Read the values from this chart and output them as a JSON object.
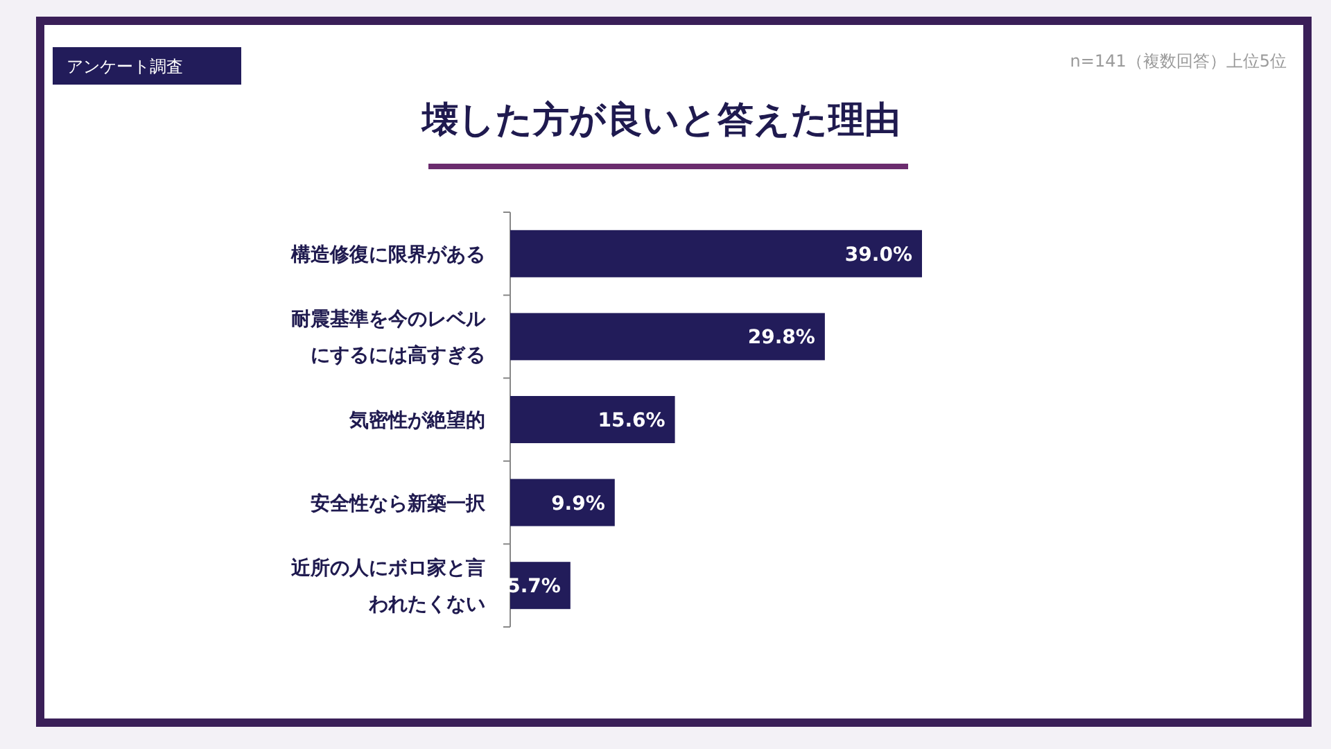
{
  "chart_data": {
    "type": "bar",
    "orientation": "horizontal",
    "title": "壊した方が良いと答えた理由",
    "categories": [
      "構造修復に限界がある",
      "耐震基準を今のレベルにするには高すぎる",
      "気密性が絶望的",
      "安全性なら新築一択",
      "近所の人にボロ家と言われたくない"
    ],
    "values": [
      39.0,
      29.8,
      15.6,
      9.9,
      5.7
    ],
    "value_labels": [
      "39.0%",
      "29.8%",
      "15.6%",
      "9.9%",
      "5.7%"
    ],
    "color": "#221c5a",
    "annotations": [
      "アンケート調査",
      "n=141（複数回答）上位5位"
    ]
  }
}
